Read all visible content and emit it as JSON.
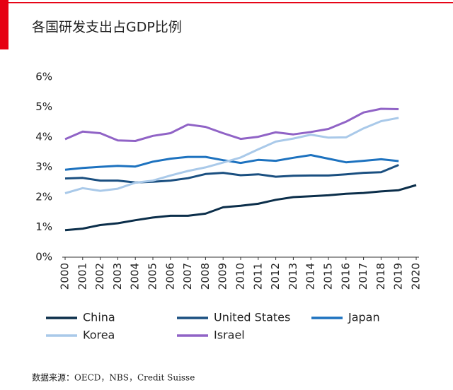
{
  "chart_data": {
    "type": "line",
    "title": "各国研发支出占GDP比例",
    "source": "数据来源：OECD，NBS，Credit Suisse",
    "categories": [
      "2000",
      "2001",
      "2002",
      "2003",
      "2004",
      "2005",
      "2006",
      "2007",
      "2008",
      "2009",
      "2010",
      "2011",
      "2012",
      "2013",
      "2014",
      "2015",
      "2016",
      "2017",
      "2018",
      "2019",
      "2020"
    ],
    "series": [
      {
        "name": "China",
        "color": "#0b2e4a",
        "values": [
          0.9,
          0.95,
          1.07,
          1.13,
          1.23,
          1.32,
          1.38,
          1.38,
          1.45,
          1.66,
          1.71,
          1.78,
          1.91,
          2.0,
          2.03,
          2.06,
          2.11,
          2.14,
          2.19,
          2.23,
          2.4
        ]
      },
      {
        "name": "United States",
        "color": "#1a4f80",
        "values": [
          2.62,
          2.64,
          2.55,
          2.55,
          2.49,
          2.51,
          2.55,
          2.63,
          2.77,
          2.81,
          2.73,
          2.76,
          2.68,
          2.71,
          2.72,
          2.72,
          2.76,
          2.81,
          2.83,
          3.07,
          null
        ]
      },
      {
        "name": "Japan",
        "color": "#1d72bf",
        "values": [
          2.91,
          2.97,
          3.01,
          3.04,
          3.02,
          3.18,
          3.28,
          3.34,
          3.34,
          3.23,
          3.14,
          3.24,
          3.21,
          3.31,
          3.4,
          3.28,
          3.16,
          3.21,
          3.26,
          3.2,
          null
        ]
      },
      {
        "name": "Korea",
        "color": "#a9c9e9",
        "values": [
          2.13,
          2.3,
          2.21,
          2.28,
          2.48,
          2.55,
          2.72,
          2.87,
          2.99,
          3.15,
          3.32,
          3.59,
          3.85,
          3.95,
          4.08,
          3.98,
          3.99,
          4.29,
          4.53,
          4.64,
          null
        ]
      },
      {
        "name": "Israel",
        "color": "#9063c6",
        "values": [
          3.93,
          4.18,
          4.13,
          3.89,
          3.87,
          4.04,
          4.13,
          4.42,
          4.34,
          4.13,
          3.94,
          4.01,
          4.16,
          4.09,
          4.17,
          4.27,
          4.51,
          4.82,
          4.94,
          4.93,
          null
        ]
      }
    ],
    "ylim": [
      0,
      6
    ],
    "yticks": [
      {
        "value": 0,
        "label": "0%"
      },
      {
        "value": 1,
        "label": "1%"
      },
      {
        "value": 2,
        "label": "2%"
      },
      {
        "value": 3,
        "label": "3%"
      },
      {
        "value": 4,
        "label": "4%"
      },
      {
        "value": 5,
        "label": "5%"
      },
      {
        "value": 6,
        "label": "6%"
      }
    ]
  }
}
